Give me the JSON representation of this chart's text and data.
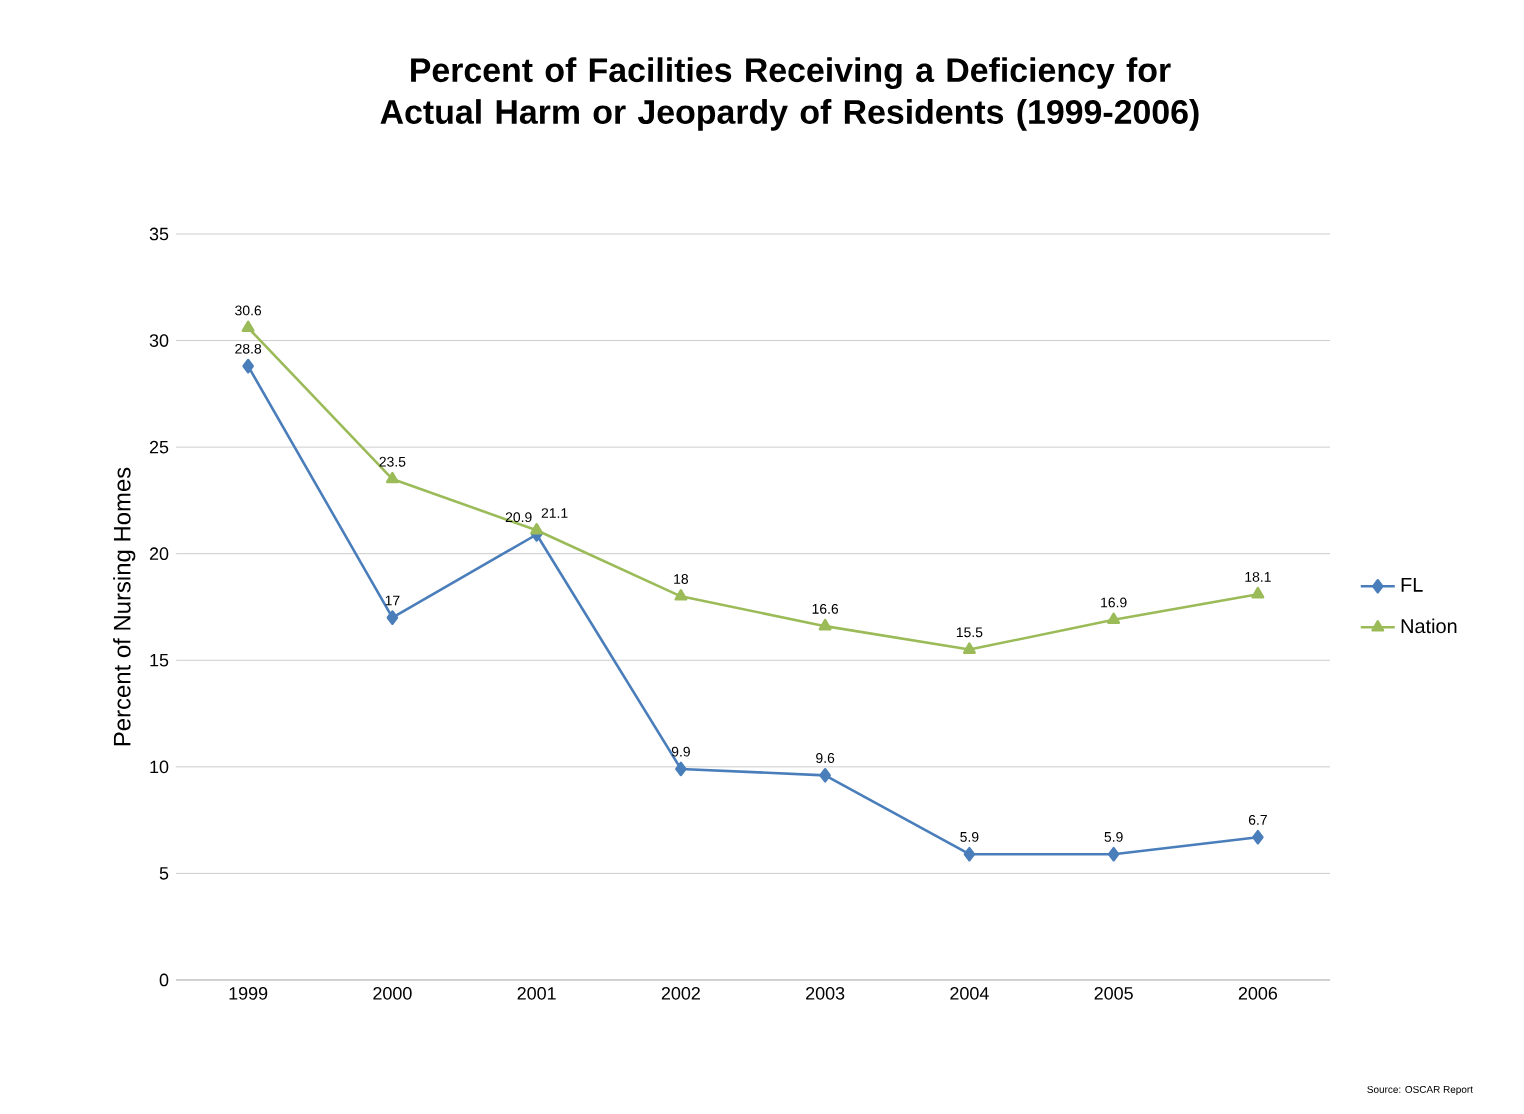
{
  "chart_data": {
    "type": "line",
    "title": "Percent of Facilities Receiving a Deficiency for Actual Harm or Jeopardy of Residents (1999-2006)",
    "ylabel": "Percent of Nursing Homes",
    "categories": [
      "1999",
      "2000",
      "2001",
      "2002",
      "2003",
      "2004",
      "2005",
      "2006"
    ],
    "series": [
      {
        "name": "FL",
        "color": "#4a7ebb",
        "marker": "diamond",
        "values": [
          28.8,
          17,
          20.9,
          9.9,
          9.6,
          5.9,
          5.9,
          6.7
        ]
      },
      {
        "name": "Nation",
        "color": "#9bbb59",
        "marker": "triangle",
        "values": [
          30.6,
          23.5,
          21.1,
          18,
          16.6,
          15.5,
          16.9,
          18.1
        ]
      }
    ],
    "ylim": [
      0,
      35
    ],
    "yticks": [
      0,
      5,
      10,
      15,
      20,
      25,
      30,
      35
    ],
    "grid": "y",
    "legend": "right",
    "data_labels": true,
    "line_style": "solid",
    "annotations": [
      "Source: OSCAR Report"
    ]
  }
}
